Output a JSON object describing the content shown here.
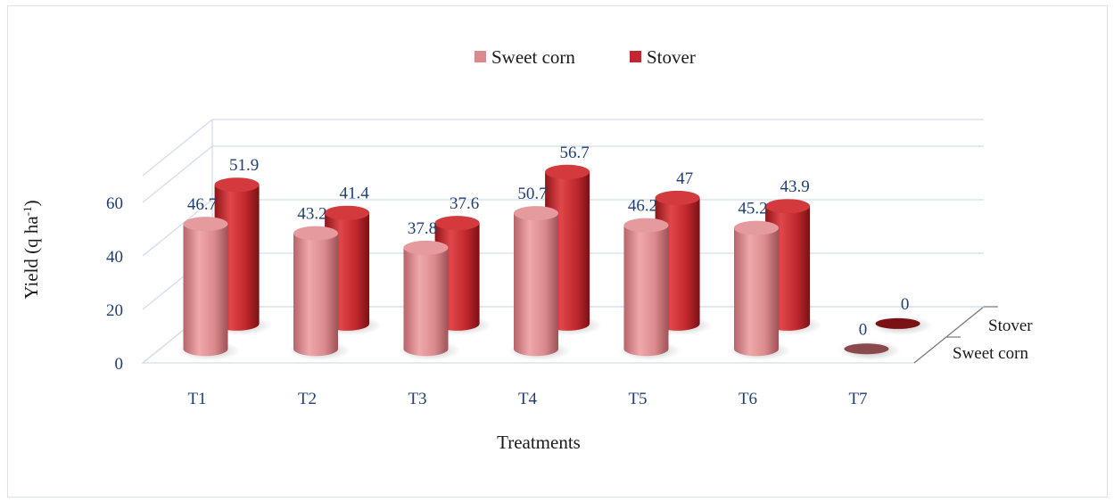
{
  "chart_data": {
    "type": "bar",
    "variant": "3d-cylinder",
    "categories": [
      "T1",
      "T2",
      "T3",
      "T4",
      "T5",
      "T6",
      "T7"
    ],
    "series": [
      {
        "name": "Sweet corn",
        "values": [
          46.7,
          43.2,
          37.8,
          50.7,
          46.2,
          45.2,
          0
        ],
        "color": "#d98a8c"
      },
      {
        "name": "Stover",
        "values": [
          51.9,
          41.4,
          37.6,
          56.7,
          47,
          43.9,
          0
        ],
        "color": "#c0282d"
      }
    ],
    "data_labels": {
      "Sweet corn": [
        "46.7",
        "43.2",
        "37.8",
        "50.7",
        "46.2",
        "45.2",
        "0"
      ],
      "Stover": [
        "51.9",
        "41.4",
        "37.6",
        "56.7",
        "47",
        "43.9",
        "0"
      ]
    },
    "y_ticks": [
      "0",
      "20",
      "40",
      "60"
    ],
    "depth_labels": [
      "Stover",
      "Sweet corn"
    ],
    "xlabel": "Treatments",
    "ylabel_main": "Yield (q ha",
    "ylabel_sup": "-1",
    "ylabel_close": ")",
    "ylim": [
      0,
      70
    ],
    "grid": true,
    "legend_position": "top-center"
  }
}
